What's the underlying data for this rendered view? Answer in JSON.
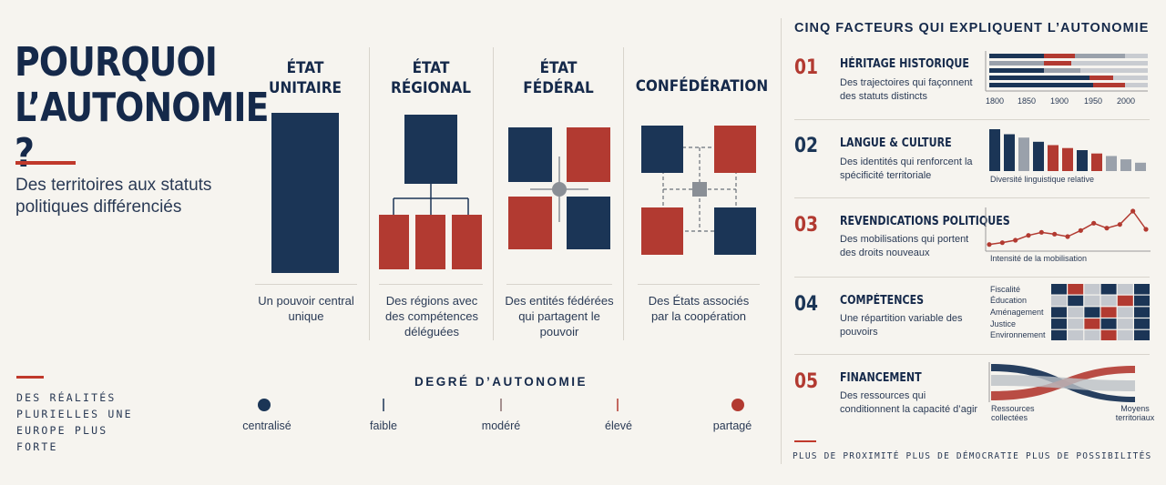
{
  "title": "POURQUOI L’AUTONOMIE ?",
  "subtitle": "Des territoires aux statuts politiques différenciés",
  "slogan": "DES RÉALITÉS PLURIELLES UNE EUROPE PLUS FORTE",
  "states": [
    {
      "title": "ÉTAT UNITAIRE",
      "desc": "Un pouvoir central unique"
    },
    {
      "title": "ÉTAT RÉGIONAL",
      "desc": "Des régions avec des compétences déléguées"
    },
    {
      "title": "ÉTAT FÉDÉRAL",
      "desc": "Des entités fédérées qui partagent le pouvoir"
    },
    {
      "title": "CONFÉDÉRATION",
      "desc": "Des États associés par la coopération"
    }
  ],
  "degree": {
    "title": "DEGRÉ D’AUTONOMIE",
    "levels": [
      "centralisé",
      "faible",
      "modéré",
      "élevé",
      "partagé"
    ]
  },
  "factors_title": "CINQ FACTEURS QUI EXPLIQUENT L’AUTONOMIE",
  "factors": [
    {
      "num": "01",
      "title": "HÉRITAGE HISTORIQUE",
      "desc": "Des trajectoires qui façonnent des statuts distincts"
    },
    {
      "num": "02",
      "title": "LANGUE & CULTURE",
      "desc": "Des identités qui renforcent la spécificité territoriale"
    },
    {
      "num": "03",
      "title": "REVENDICATIONS POLITIQUES",
      "desc": "Des mobilisations qui portent des droits nouveaux"
    },
    {
      "num": "04",
      "title": "COMPÉTENCES",
      "desc": "Une répartition variable des pouvoirs"
    },
    {
      "num": "05",
      "title": "FINANCEMENT",
      "desc": "Des ressources qui conditionnent la capacité d’agir"
    }
  ],
  "mini": {
    "timeline_ticks": [
      "1800",
      "1850",
      "1900",
      "1950",
      "2000"
    ],
    "diversity_caption": "Diversité linguistique relative",
    "diversity_values": [
      100,
      88,
      80,
      70,
      62,
      55,
      50,
      42,
      36,
      28,
      20
    ],
    "mobilisation_caption": "Intensité de la mobilisation",
    "mobilisation_values": [
      5,
      8,
      12,
      20,
      25,
      22,
      18,
      28,
      40,
      32,
      38,
      60,
      30
    ],
    "competence_rows": [
      "Fiscalité",
      "Éducation",
      "Aménagement",
      "Justice",
      "Environnement"
    ],
    "flow_from": "Ressources collectées",
    "flow_to": "Moyens territoriaux"
  },
  "bottom_tag": "PLUS DE PROXIMITÉ  PLUS DE DÉMOCRATIE  PLUS DE POSSIBILITÉS",
  "colors": {
    "navy": "#1b3556",
    "red": "#b23a31",
    "grey": "#9aa1ab",
    "bg": "#f6f4ef"
  }
}
